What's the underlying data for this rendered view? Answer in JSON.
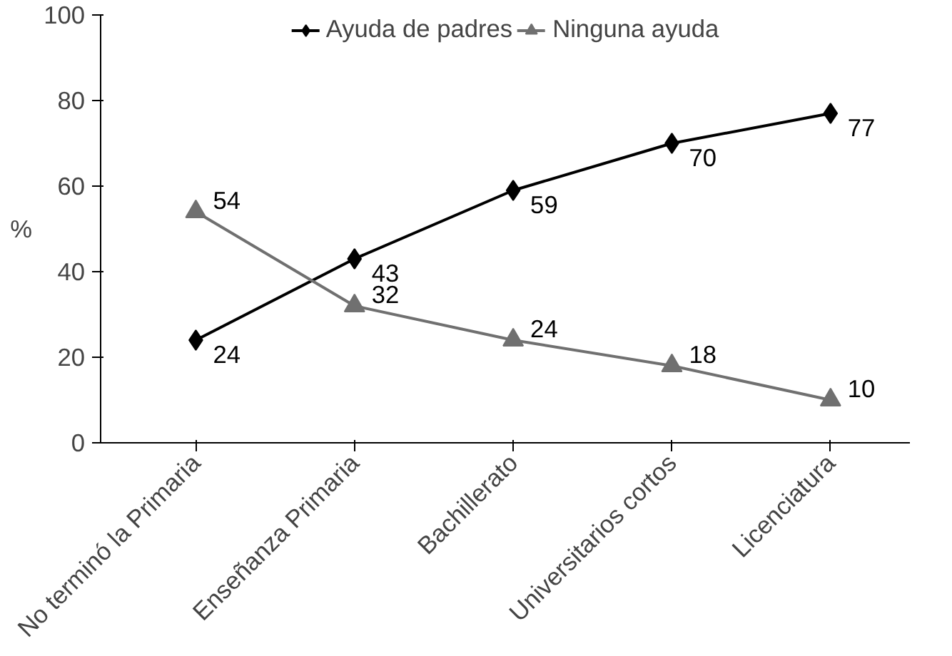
{
  "chart_data": {
    "type": "line",
    "ylabel": "%",
    "categories": [
      "No terminó la Primaria",
      "Enseñanza Primaria",
      "Bachillerato",
      "Universitarios cortos",
      "Licenciatura"
    ],
    "series": [
      {
        "name": "Ayuda de padres",
        "color": "#000000",
        "marker": "diamond",
        "values": [
          24,
          43,
          59,
          70,
          77
        ]
      },
      {
        "name": "Ninguna ayuda",
        "color": "#707070",
        "marker": "triangle",
        "values": [
          54,
          32,
          24,
          18,
          10
        ]
      }
    ],
    "ylim": [
      0,
      100
    ],
    "yticks": [
      0,
      20,
      40,
      60,
      80,
      100
    ],
    "grid": false,
    "legend": "top",
    "data_labels": true,
    "line_style": "solid"
  }
}
